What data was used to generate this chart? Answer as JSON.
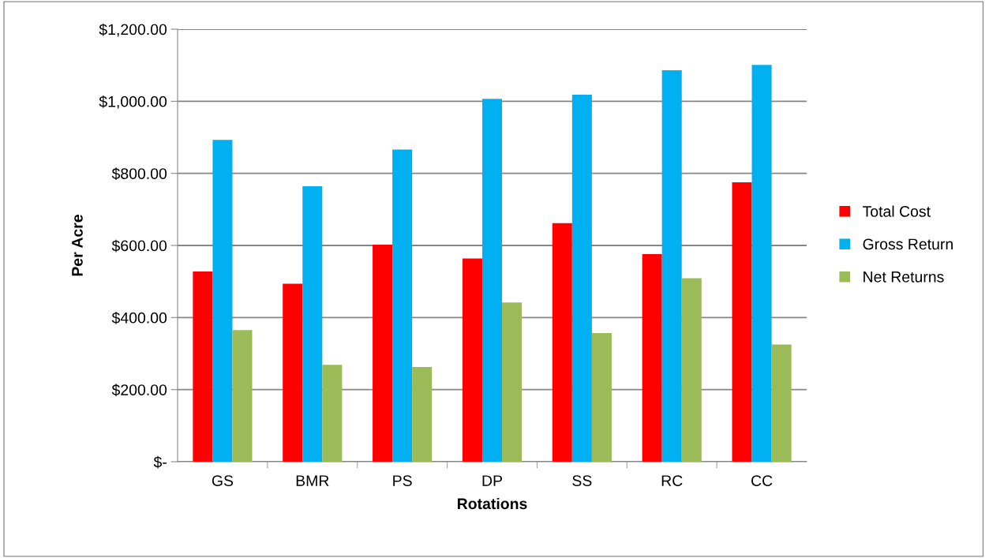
{
  "chart_data": {
    "type": "bar",
    "xlabel": "Rotations",
    "ylabel": "Per Acre",
    "categories": [
      "GS",
      "BMR",
      "PS",
      "DP",
      "SS",
      "RC",
      "CC"
    ],
    "series": [
      {
        "name": "Total Cost",
        "color": "#ff0000",
        "values": [
          528,
          494,
          602,
          564,
          662,
          576,
          775
        ]
      },
      {
        "name": "Gross Return",
        "color": "#00b0f0",
        "values": [
          893,
          764,
          866,
          1007,
          1018,
          1086,
          1101
        ]
      },
      {
        "name": "Net Returns",
        "color": "#9bbb59",
        "values": [
          365,
          269,
          263,
          442,
          357,
          509,
          325
        ]
      }
    ],
    "ylim": [
      0,
      1200
    ],
    "yticks": [
      {
        "value": 0,
        "label": "$-"
      },
      {
        "value": 200,
        "label": "$200.00"
      },
      {
        "value": 400,
        "label": "$400.00"
      },
      {
        "value": 600,
        "label": "$600.00"
      },
      {
        "value": 800,
        "label": "$800.00"
      },
      {
        "value": 1000,
        "label": "$1,000.00"
      },
      {
        "value": 1200,
        "label": "$1,200.00"
      }
    ],
    "grid": "y",
    "legend": "right"
  }
}
